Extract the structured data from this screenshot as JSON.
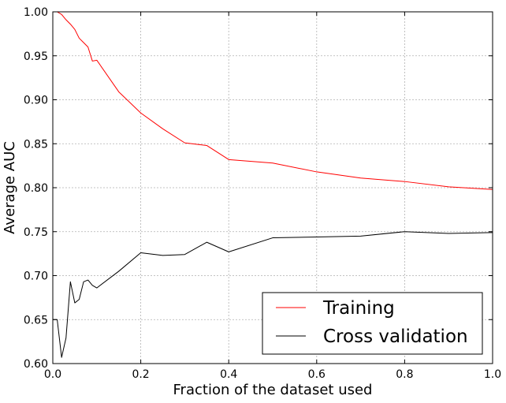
{
  "chart_data": {
    "type": "line",
    "xlabel": "Fraction of the dataset used",
    "ylabel": "Average AUC",
    "xlim": [
      0.0,
      1.0
    ],
    "ylim": [
      0.6,
      1.0
    ],
    "xticks": [
      0.0,
      0.2,
      0.4,
      0.6,
      0.8,
      1.0
    ],
    "xtick_labels": [
      "0.0",
      "0.2",
      "0.4",
      "0.6",
      "0.8",
      "1.0"
    ],
    "yticks": [
      0.6,
      0.65,
      0.7,
      0.75,
      0.8,
      0.85,
      0.9,
      0.95,
      1.0
    ],
    "ytick_labels": [
      "0.60",
      "0.65",
      "0.70",
      "0.75",
      "0.80",
      "0.85",
      "0.90",
      "0.95",
      "1.00"
    ],
    "grid": true,
    "legend_position": "bottom-right",
    "series": [
      {
        "name": "Training",
        "color": "#ff0000",
        "x": [
          0.0,
          0.01,
          0.02,
          0.03,
          0.04,
          0.05,
          0.06,
          0.07,
          0.08,
          0.09,
          0.1,
          0.15,
          0.2,
          0.25,
          0.3,
          0.35,
          0.4,
          0.5,
          0.6,
          0.7,
          0.8,
          0.9,
          1.0
        ],
        "y": [
          1.0,
          1.0,
          0.997,
          0.991,
          0.986,
          0.98,
          0.97,
          0.965,
          0.96,
          0.944,
          0.945,
          0.909,
          0.885,
          0.867,
          0.851,
          0.848,
          0.832,
          0.828,
          0.818,
          0.811,
          0.807,
          0.801,
          0.798
        ]
      },
      {
        "name": "Cross validation",
        "color": "#000000",
        "x": [
          0.0,
          0.01,
          0.02,
          0.03,
          0.04,
          0.05,
          0.06,
          0.07,
          0.08,
          0.09,
          0.1,
          0.15,
          0.2,
          0.25,
          0.3,
          0.35,
          0.4,
          0.5,
          0.6,
          0.7,
          0.8,
          0.9,
          1.0
        ],
        "y": [
          0.65,
          0.65,
          0.607,
          0.629,
          0.693,
          0.669,
          0.673,
          0.693,
          0.695,
          0.689,
          0.686,
          0.705,
          0.726,
          0.723,
          0.724,
          0.738,
          0.727,
          0.743,
          0.744,
          0.745,
          0.75,
          0.748,
          0.749
        ]
      }
    ]
  }
}
